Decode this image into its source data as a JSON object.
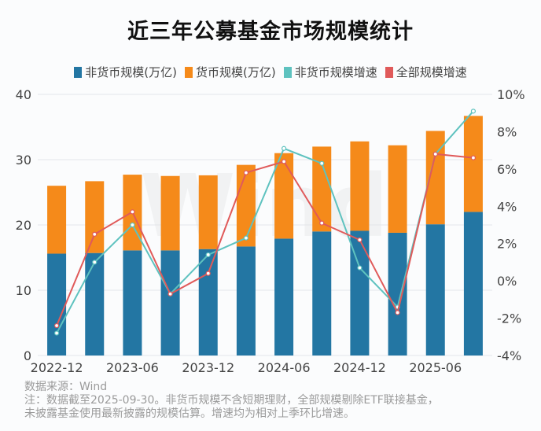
{
  "chart_data": {
    "type": "bar",
    "title": "近三年公募基金市场规模统计",
    "categories": [
      "2022-12",
      "2023-03",
      "2023-06",
      "2023-09",
      "2023-12",
      "2024-03",
      "2024-06",
      "2024-09",
      "2024-12",
      "2025-03",
      "2025-06",
      "2025-09"
    ],
    "x_tick_labels": [
      "2022-12",
      "2023-06",
      "2023-12",
      "2024-06",
      "2024-12",
      "2025-06"
    ],
    "stacked_series": [
      {
        "name": "非货币规模(万亿)",
        "color": "#2376a3",
        "axis": "left",
        "values": [
          15.6,
          15.7,
          16.1,
          16.1,
          16.3,
          16.7,
          17.9,
          19.0,
          19.1,
          18.8,
          20.1,
          22.0
        ]
      },
      {
        "name": "货币规模(万亿)",
        "color": "#f58a1a",
        "axis": "left",
        "values": [
          10.4,
          11.0,
          11.6,
          11.4,
          11.3,
          12.5,
          13.1,
          13.0,
          13.7,
          13.4,
          14.3,
          14.7
        ]
      }
    ],
    "line_series": [
      {
        "name": "非货币规模增速",
        "color": "#5ec2bf",
        "axis": "right",
        "values": [
          -2.8,
          1.0,
          3.0,
          -0.7,
          1.4,
          2.3,
          7.1,
          6.3,
          0.7,
          -1.4,
          6.8,
          9.1
        ]
      },
      {
        "name": "全部规模增速",
        "color": "#e05a5a",
        "axis": "right",
        "values": [
          -2.4,
          2.5,
          3.7,
          -0.7,
          0.4,
          5.8,
          6.4,
          3.1,
          2.2,
          -1.7,
          6.8,
          6.6
        ]
      }
    ],
    "left_axis": {
      "ylim": [
        0,
        40
      ],
      "ticks": [
        "0",
        "10",
        "20",
        "30",
        "40"
      ]
    },
    "right_axis": {
      "ylim": [
        -4,
        10
      ],
      "unit": "%",
      "ticks": [
        "-4%",
        "-2%",
        "0%",
        "2%",
        "4%",
        "6%",
        "8%",
        "10%"
      ]
    },
    "grid": true,
    "legend_position": "top",
    "watermark": "Wind"
  },
  "footer": {
    "source": "数据来源：Wind",
    "note_line1": "注：数据截至2025-09-30。非货币规模不含短期理财，全部规模剔除ETF联接基金，",
    "note_line2": "未披露基金使用最新披露的规模估算。增速均为相对上季环比增速。"
  }
}
